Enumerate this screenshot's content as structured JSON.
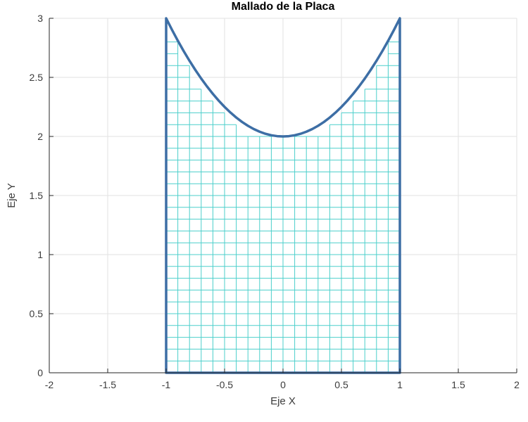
{
  "chart_data": {
    "type": "line",
    "title": "Mallado de la Placa",
    "xlabel": "Eje X",
    "ylabel": "Eje Y",
    "xlim": [
      -2,
      2
    ],
    "ylim": [
      0,
      3
    ],
    "xticks": [
      -2,
      -1.5,
      -1,
      -0.5,
      0,
      0.5,
      1,
      1.5,
      2
    ],
    "xtick_labels": [
      "-2",
      "-1.5",
      "-1",
      "-0.5",
      "0",
      "0.5",
      "1",
      "1.5",
      "2"
    ],
    "yticks": [
      0,
      0.5,
      1,
      1.5,
      2,
      2.5,
      3
    ],
    "ytick_labels": [
      "0",
      "0.5",
      "1",
      "1.5",
      "2",
      "2.5",
      "3"
    ],
    "grid": true,
    "legend": "none",
    "colors": {
      "mesh": "#4CCFCB",
      "boundary": "#3D6EA5",
      "grid": "#E2E2E2",
      "axis": "#262626",
      "tick_text": "#3B3B3B",
      "background": "#FFFFFF"
    },
    "mesh": {
      "description": "square mesh cells of the plate, 0.1 x 0.1, columns clipped under the parabola",
      "x_start": -1,
      "x_end": 1,
      "cell_size": 0.1,
      "column_tops": [
        2.8,
        2.6,
        2.4,
        2.3,
        2.2,
        2.1,
        2.0,
        2.0,
        2.0,
        2.0,
        2.0,
        2.0,
        2.0,
        2.0,
        2.1,
        2.2,
        2.3,
        2.4,
        2.6,
        2.8
      ]
    },
    "boundary": {
      "formula": "y = 2 + x^2",
      "x_range": [
        -1,
        1
      ],
      "side_x": [
        -1,
        1
      ],
      "bottom_y": 0,
      "top_y": 3,
      "vertex": [
        0,
        2
      ],
      "line_width": 3.5
    }
  }
}
